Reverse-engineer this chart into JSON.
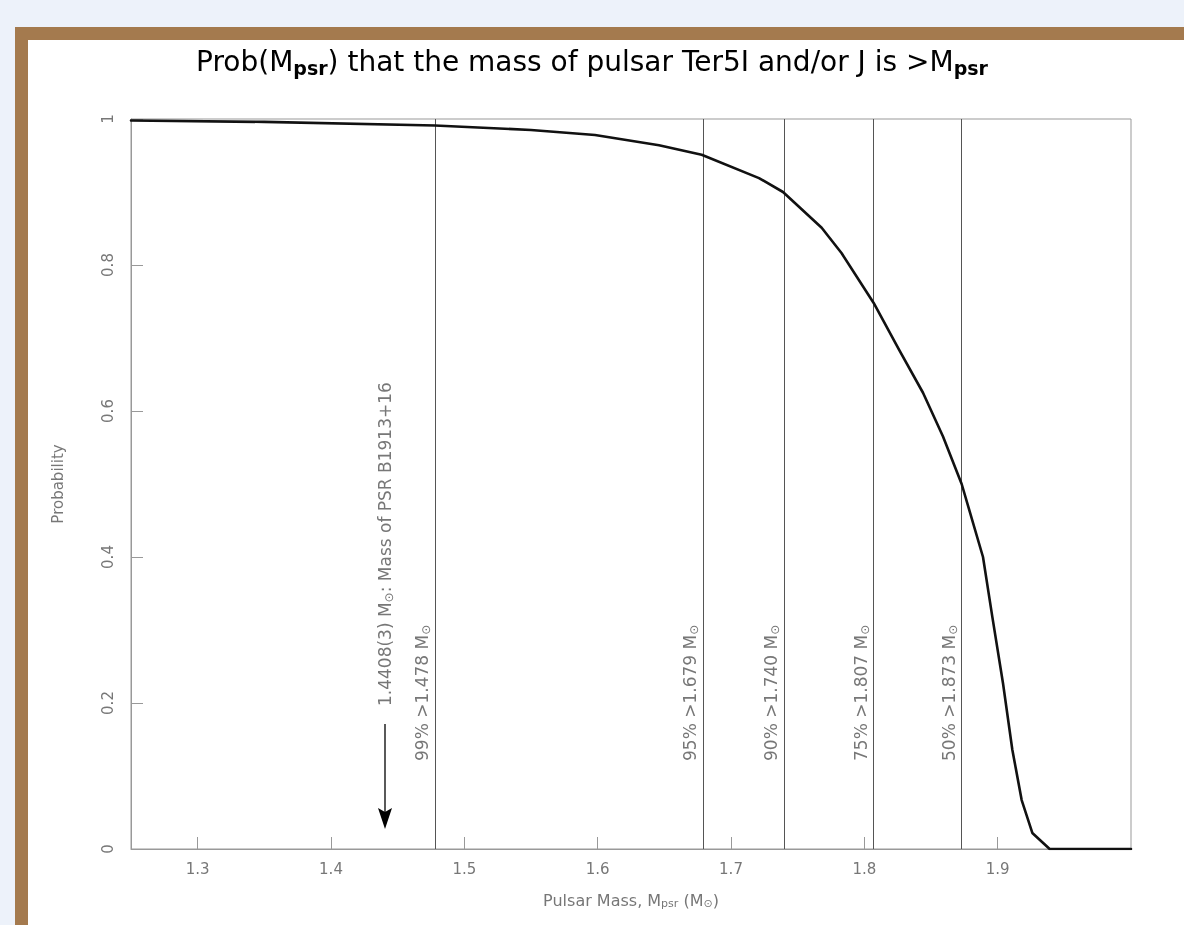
{
  "chart_data": {
    "type": "line",
    "title": "Prob(M$_{psr}$) that the mass of pulsar Ter5I and/or J is >M$_{psr}$",
    "xlabel": "Pulsar Mass, M$_{psr}$ (M$_{⊙}$)",
    "ylabel": "Probability",
    "x": [
      1.25,
      1.35,
      1.478,
      1.55,
      1.598,
      1.646,
      1.678,
      1.721,
      1.739,
      1.768,
      1.783,
      1.807,
      1.826,
      1.844,
      1.859,
      1.873,
      1.889,
      1.896,
      1.904,
      1.911,
      1.918,
      1.926,
      1.939,
      2.0
    ],
    "series": [
      {
        "color": "#111111",
        "values": [
          0.998,
          0.996,
          0.991,
          0.985,
          0.978,
          0.964,
          0.951,
          0.919,
          0.9,
          0.851,
          0.816,
          0.748,
          0.684,
          0.625,
          0.565,
          0.5,
          0.4,
          0.318,
          0.227,
          0.136,
          0.067,
          0.022,
          0.0,
          0.0
        ]
      }
    ],
    "xlim": [
      1.25,
      2.0
    ],
    "xticks": [
      1.3,
      1.4,
      1.5,
      1.6,
      1.7,
      1.8,
      1.9
    ],
    "ylim": [
      0,
      1
    ],
    "yticks": [
      0,
      0.2,
      0.4,
      0.6,
      0.8,
      1
    ],
    "grid": false,
    "marker": "none",
    "line_style": "solid",
    "ref_lines": [
      {
        "axis": "x",
        "value": 1.478,
        "label": "99% >1.478 M$_{⊙}$"
      },
      {
        "axis": "x",
        "value": 1.679,
        "label": "95% >1.679 M$_{⊙}$"
      },
      {
        "axis": "x",
        "value": 1.74,
        "label": "90% >1.740 M$_{⊙}$"
      },
      {
        "axis": "x",
        "value": 1.807,
        "label": "75% >1.807 M$_{⊙}$"
      },
      {
        "axis": "x",
        "value": 1.873,
        "label": "50% >1.873 M$_{⊙}$"
      }
    ],
    "annotations": [
      "1.4408(3) M$_{⊙}$: Mass of PSR B1913+16"
    ]
  }
}
